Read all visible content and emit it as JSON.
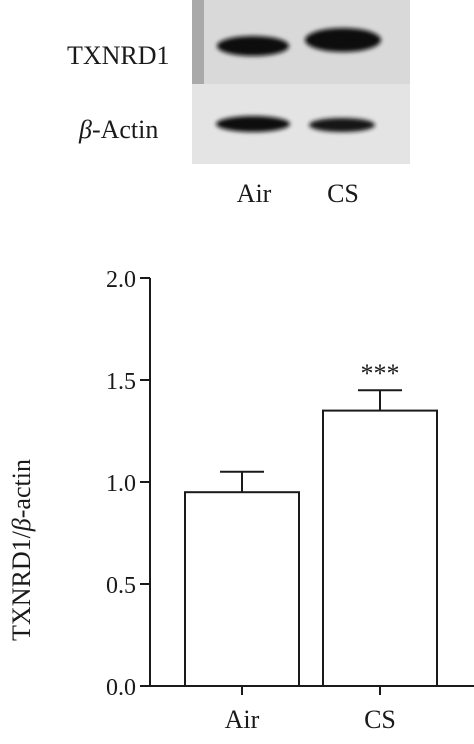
{
  "blot": {
    "rows": [
      {
        "label_prefix": "",
        "label_text": "TXNRD1"
      },
      {
        "label_prefix": "β",
        "label_text": "-Actin"
      }
    ],
    "lanes": [
      "Air",
      "CS"
    ]
  },
  "chart_data": {
    "type": "bar",
    "categories": [
      "Air",
      "CS"
    ],
    "values": [
      0.95,
      1.35
    ],
    "errors": [
      0.1,
      0.1
    ],
    "annotations": [
      "",
      "***"
    ],
    "title": "",
    "xlabel": "",
    "ylabel_prefix": "TXNRD1/",
    "ylabel_greek": "β",
    "ylabel_suffix": "-actin",
    "ylim": [
      0,
      2.0
    ],
    "yticks": [
      "0.0",
      "0.5",
      "1.0",
      "1.5",
      "2.0"
    ],
    "grid": false,
    "colors": {
      "bar_fill": "#ffffff",
      "bar_stroke": "#1a1a1a"
    }
  }
}
